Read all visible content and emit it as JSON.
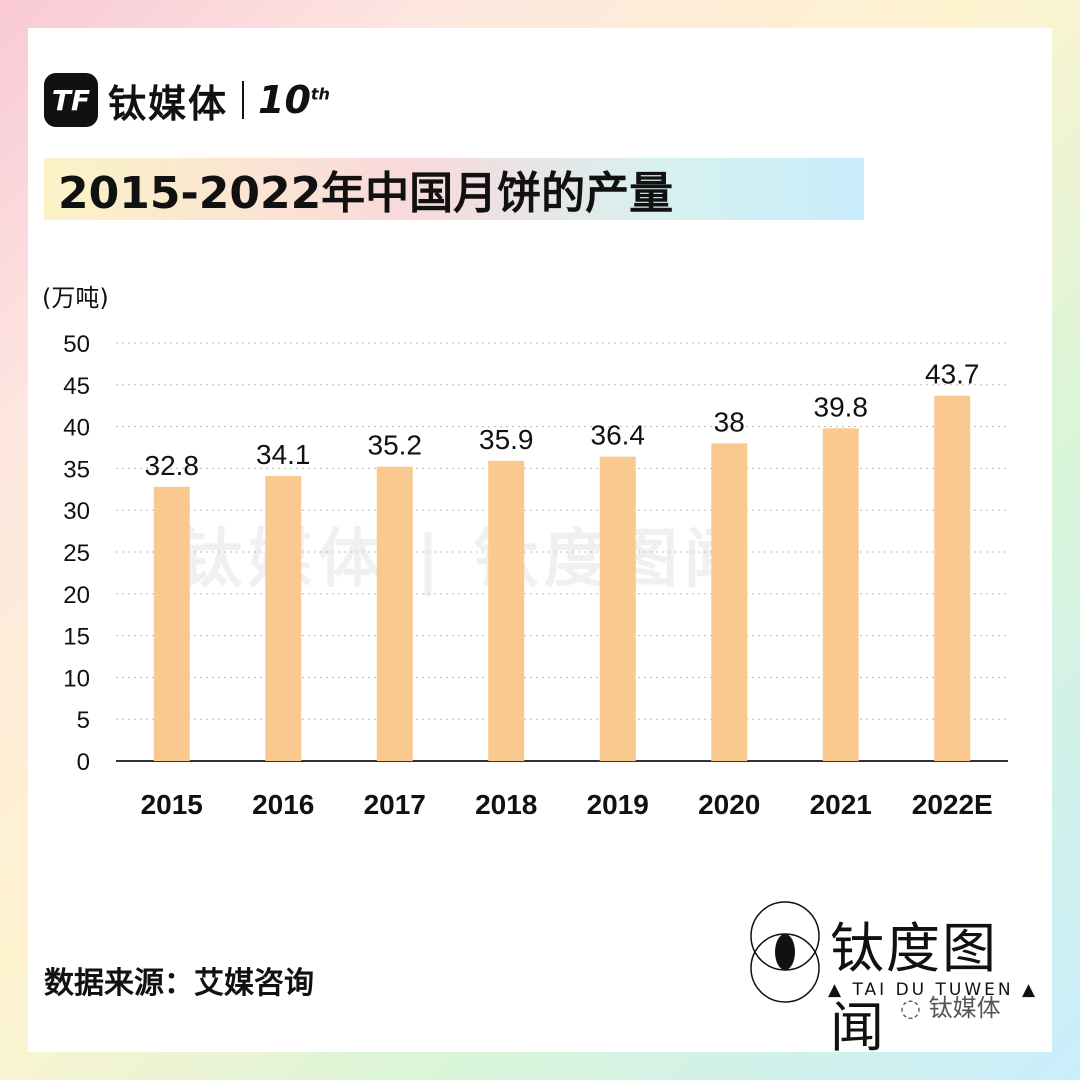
{
  "brand": {
    "logo_text": "TF",
    "name": "钛媒体",
    "anniversary": "10",
    "anniversary_suffix": "th"
  },
  "title": "2015-2022年中国月饼的产量",
  "source": "数据来源：艾媒咨询",
  "logo_footer": {
    "name": "钛度图闻",
    "subtitle": "▲ TAI DU TUWEN ▲"
  },
  "wechat": "钛媒体",
  "watermark": "钛媒体 | 钛度图闻",
  "colors": {
    "bar": "#f9c98f",
    "axis": "#333333",
    "grid": "#bbbbbb"
  },
  "chart_data": {
    "type": "bar",
    "title": "2015-2022年中国月饼的产量",
    "ylabel": "(万吨)",
    "xlabel": "",
    "categories": [
      "2015",
      "2016",
      "2017",
      "2018",
      "2019",
      "2020",
      "2021",
      "2022E"
    ],
    "values": [
      32.8,
      34.1,
      35.2,
      35.9,
      36.4,
      38,
      39.8,
      43.7
    ],
    "value_labels": [
      "32.8",
      "34.1",
      "35.2",
      "35.9",
      "36.4",
      "38",
      "39.8",
      "43.7"
    ],
    "ylim": [
      0,
      50
    ],
    "yticks": [
      0,
      5,
      10,
      15,
      20,
      25,
      30,
      35,
      40,
      45,
      50
    ],
    "grid": true,
    "legend": "none"
  }
}
